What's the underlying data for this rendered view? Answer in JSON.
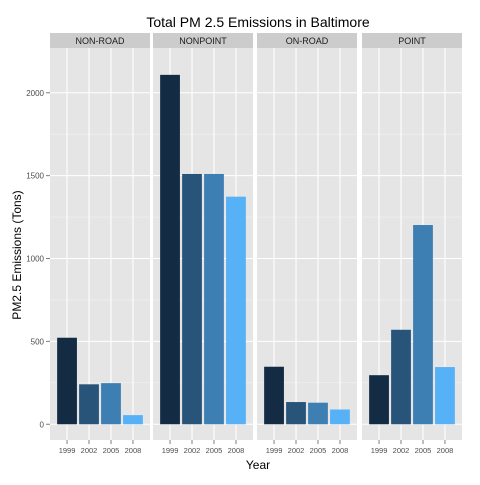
{
  "chart_data": {
    "type": "bar",
    "title": "Total PM 2.5 Emissions in Baltimore",
    "xlabel": "Year",
    "ylabel": "PM2.5 Emissions (Tons)",
    "ylim": [
      -95,
      2270
    ],
    "yticks": [
      0,
      500,
      1000,
      1500,
      2000
    ],
    "grid": true,
    "legend": "none",
    "categories": [
      "1999",
      "2002",
      "2005",
      "2008"
    ],
    "bar_colors": [
      "#132B43",
      "#28547A",
      "#3D7EB3",
      "#56B1F7"
    ],
    "panel_background": "#E5E5E5",
    "strip_background": "#CCCCCC",
    "facets": [
      {
        "name": "NON-ROAD",
        "values": [
          522,
          241,
          248,
          55
        ]
      },
      {
        "name": "NONPOINT",
        "values": [
          2108,
          1510,
          1510,
          1373
        ]
      },
      {
        "name": "ON-ROAD",
        "values": [
          347,
          134,
          130,
          89
        ]
      },
      {
        "name": "POINT",
        "values": [
          296,
          570,
          1202,
          345
        ]
      }
    ]
  }
}
